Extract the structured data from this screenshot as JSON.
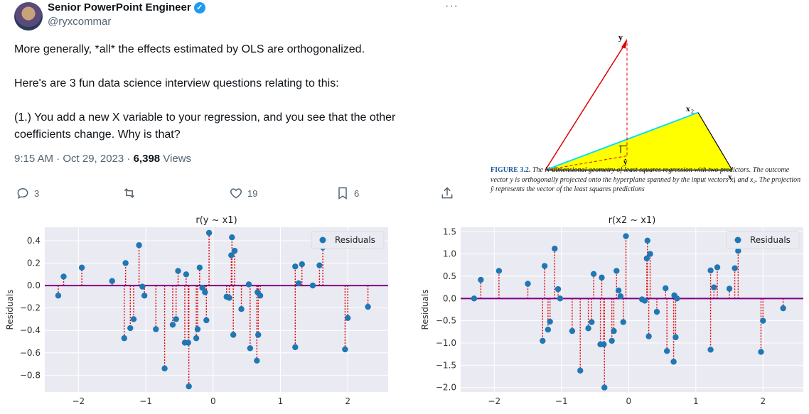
{
  "tweet": {
    "name": "Senior PowerPoint Engineer",
    "handle": "@ryxcommar",
    "body": [
      "More generally, *all* the effects estimated by OLS are orthogonalized.",
      "Here's are 3 fun data science interview questions relating to this:",
      "(1.) You add a new X variable to your regression, and you see that the other coefficients change. Why is that?"
    ],
    "time": "9:15 AM · Oct 29, 2023 · ",
    "views_count": "6,398",
    "views_label": " Views",
    "replies": "3",
    "retweets": "",
    "likes": "19",
    "bookmarks": "6"
  },
  "figure": {
    "labels": {
      "y": "y",
      "x1": "x",
      "x1_sub": "1",
      "x2": "x",
      "x2_sub": "2",
      "yhat": "ŷ"
    },
    "caption_label": "FIGURE 3.2.",
    "caption_text": " The N-dimensional geometry of least squares regression with two predictors. The outcome vector y is orthogonally projected onto the hyperplane spanned by the input vectors x₁ and x₂. The projection ŷ represents the vector of the least squares predictions"
  },
  "chart_data": [
    {
      "type": "scatter",
      "title": "r(y ~ x1)",
      "ylabel": "Residuals",
      "legend": "Residuals",
      "legend_position": "top-right",
      "xlim": [
        -2.5,
        2.6
      ],
      "ylim": [
        -0.95,
        0.52
      ],
      "xticks": [
        -2,
        -1,
        0,
        1,
        2
      ],
      "yticks": [
        0.4,
        0.2,
        0.0,
        -0.2,
        -0.4,
        -0.6,
        -0.8
      ],
      "ytick_labels": [
        "0.4",
        "0.2",
        "0.0",
        "−0.2",
        "−0.4",
        "−0.6",
        "−0.8"
      ],
      "xtick_labels": [
        "−2",
        "−1",
        "0",
        "1",
        "2"
      ],
      "grid": true,
      "points": [
        [
          -2.3,
          -0.09
        ],
        [
          -2.22,
          0.08
        ],
        [
          -1.95,
          0.16
        ],
        [
          -1.5,
          0.04
        ],
        [
          -1.32,
          -0.47
        ],
        [
          -1.3,
          0.2
        ],
        [
          -1.23,
          -0.38
        ],
        [
          -1.18,
          -0.3
        ],
        [
          -1.1,
          0.36
        ],
        [
          -1.05,
          -0.01
        ],
        [
          -1.02,
          -0.09
        ],
        [
          -0.85,
          -0.39
        ],
        [
          -0.72,
          -0.74
        ],
        [
          -0.6,
          -0.35
        ],
        [
          -0.55,
          -0.3
        ],
        [
          -0.52,
          0.13
        ],
        [
          -0.42,
          -0.51
        ],
        [
          -0.4,
          0.1
        ],
        [
          -0.37,
          -0.51
        ],
        [
          -0.36,
          -0.9
        ],
        [
          -0.25,
          -0.47
        ],
        [
          -0.23,
          -0.39
        ],
        [
          -0.2,
          0.16
        ],
        [
          -0.16,
          -0.02
        ],
        [
          -0.12,
          -0.06
        ],
        [
          -0.1,
          -0.31
        ],
        [
          -0.06,
          0.47
        ],
        [
          0.2,
          -0.1
        ],
        [
          0.24,
          -0.11
        ],
        [
          0.27,
          0.27
        ],
        [
          0.28,
          0.43
        ],
        [
          0.3,
          -0.44
        ],
        [
          0.32,
          0.31
        ],
        [
          0.42,
          -0.21
        ],
        [
          0.53,
          0.01
        ],
        [
          0.55,
          -0.56
        ],
        [
          0.65,
          -0.67
        ],
        [
          0.66,
          -0.06
        ],
        [
          0.67,
          -0.44
        ],
        [
          0.7,
          -0.09
        ],
        [
          1.22,
          0.17
        ],
        [
          1.22,
          -0.55
        ],
        [
          1.27,
          0.02
        ],
        [
          1.32,
          0.19
        ],
        [
          1.48,
          0.0
        ],
        [
          1.58,
          0.18
        ],
        [
          1.63,
          0.34
        ],
        [
          1.96,
          -0.57
        ],
        [
          2.0,
          -0.29
        ],
        [
          2.3,
          -0.19
        ]
      ]
    },
    {
      "type": "scatter",
      "title": "r(x2 ~ x1)",
      "ylabel": "Residuals",
      "legend": "Residuals",
      "legend_position": "top-right",
      "xlim": [
        -2.5,
        2.6
      ],
      "ylim": [
        -2.1,
        1.6
      ],
      "xticks": [
        -2,
        -1,
        0,
        1,
        2
      ],
      "yticks": [
        1.5,
        1.0,
        0.5,
        0.0,
        -0.5,
        -1.0,
        -1.5,
        -2.0
      ],
      "ytick_labels": [
        "1.5",
        "1.0",
        "0.5",
        "0.0",
        "−0.5",
        "−1.0",
        "−1.5",
        "−2.0"
      ],
      "xtick_labels": [
        "−2",
        "−1",
        "0",
        "1",
        "2"
      ],
      "grid": true,
      "points": [
        [
          -2.3,
          0.0
        ],
        [
          -2.2,
          0.42
        ],
        [
          -1.93,
          0.62
        ],
        [
          -1.5,
          0.33
        ],
        [
          -1.28,
          -0.95
        ],
        [
          -1.25,
          0.73
        ],
        [
          -1.2,
          -0.7
        ],
        [
          -1.17,
          -0.52
        ],
        [
          -1.1,
          1.12
        ],
        [
          -1.05,
          0.21
        ],
        [
          -1.02,
          0.0
        ],
        [
          -0.84,
          -0.73
        ],
        [
          -0.72,
          -1.62
        ],
        [
          -0.6,
          -0.67
        ],
        [
          -0.55,
          -0.53
        ],
        [
          -0.52,
          0.55
        ],
        [
          -0.42,
          -1.03
        ],
        [
          -0.4,
          0.47
        ],
        [
          -0.37,
          -1.03
        ],
        [
          -0.36,
          -2.0
        ],
        [
          -0.25,
          -0.95
        ],
        [
          -0.22,
          -0.73
        ],
        [
          -0.18,
          0.62
        ],
        [
          -0.15,
          0.18
        ],
        [
          -0.12,
          0.05
        ],
        [
          -0.08,
          -0.53
        ],
        [
          -0.04,
          1.4
        ],
        [
          0.2,
          -0.02
        ],
        [
          0.24,
          -0.05
        ],
        [
          0.27,
          0.9
        ],
        [
          0.28,
          1.3
        ],
        [
          0.3,
          -0.85
        ],
        [
          0.32,
          1.0
        ],
        [
          0.42,
          -0.3
        ],
        [
          0.55,
          0.23
        ],
        [
          0.57,
          -1.18
        ],
        [
          0.67,
          -1.42
        ],
        [
          0.68,
          0.07
        ],
        [
          0.7,
          -0.87
        ],
        [
          0.72,
          0.0
        ],
        [
          1.22,
          0.63
        ],
        [
          1.22,
          -1.15
        ],
        [
          1.27,
          0.25
        ],
        [
          1.32,
          0.7
        ],
        [
          1.5,
          0.22
        ],
        [
          1.58,
          0.68
        ],
        [
          1.63,
          1.07
        ],
        [
          1.97,
          -1.2
        ],
        [
          2.0,
          -0.5
        ],
        [
          2.3,
          -0.22
        ]
      ]
    }
  ]
}
